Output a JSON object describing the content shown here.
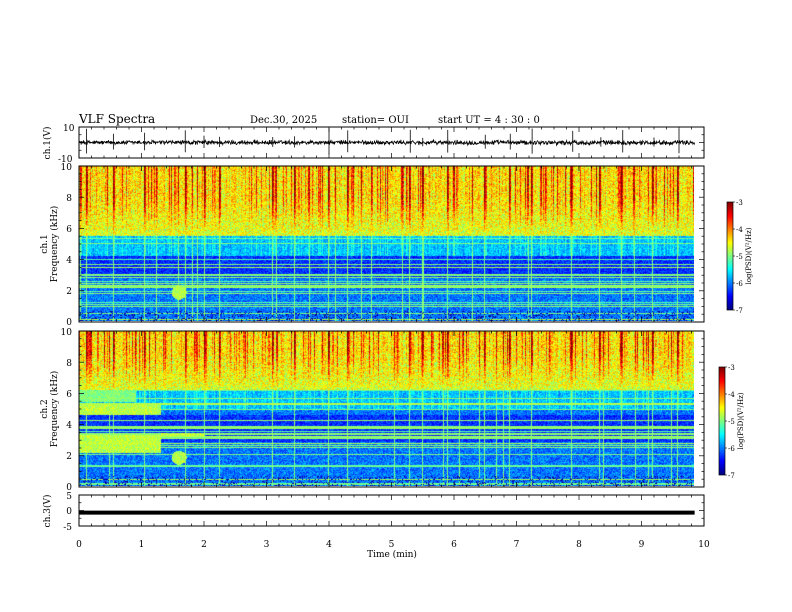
{
  "header": {
    "title": "VLF Spectra",
    "date": "Dec.30, 2025",
    "station": "station= OUI",
    "start": "start  UT =   4 : 30 : 0"
  },
  "chart_data": [
    {
      "type": "line",
      "panel": "ch1-waveform",
      "ylabel": "ch.1(V)",
      "ylim": [
        -10,
        10
      ],
      "yticks": [
        "10",
        "-10"
      ],
      "xlim": [
        0,
        10
      ],
      "trace_level": 0.0,
      "noise_amplitude": 1.2,
      "spike_times": [
        0.12,
        0.55,
        1.05,
        1.7,
        2.0,
        2.25,
        3.1,
        3.45,
        4.0,
        4.3,
        5.3,
        5.5,
        5.9,
        6.5,
        6.9,
        7.25,
        7.9,
        8.35,
        8.7,
        9.2,
        9.6
      ]
    },
    {
      "type": "heatmap",
      "panel": "ch1-spectrogram",
      "ylabel": "ch.1",
      "ylabel2": "Frequency (kHz)",
      "ylim": [
        0,
        10
      ],
      "yticks": [
        "0",
        "2",
        "4",
        "6",
        "8",
        "10"
      ],
      "xlim": [
        0,
        9.85
      ],
      "colorbar": {
        "label": "log(PSD)(V²/Hz)",
        "range": [
          -7,
          -3
        ],
        "ticks": [
          "-7",
          "-6",
          "-5",
          "-4",
          "-3"
        ]
      },
      "sferic_band_lower_kHz": 5.5,
      "whistler_patch": {
        "time": 1.6,
        "freq": 1.8
      },
      "spike_times": [
        0.12,
        0.55,
        1.05,
        1.7,
        2.0,
        2.25,
        3.1,
        3.45,
        4.0,
        4.3,
        5.3,
        5.5,
        5.9,
        6.5,
        6.9,
        7.25,
        7.9,
        8.35,
        8.7,
        9.2,
        9.6
      ]
    },
    {
      "type": "heatmap",
      "panel": "ch2-spectrogram",
      "ylabel": "ch.2",
      "ylabel2": "Frequency (kHz)",
      "ylim": [
        0,
        10
      ],
      "yticks": [
        "0",
        "2",
        "4",
        "6",
        "8",
        "10"
      ],
      "xlim": [
        0,
        9.85
      ],
      "colorbar": {
        "label": "log(PSD)(V²/Hz)",
        "range": [
          -7,
          -3
        ],
        "ticks": [
          "-7",
          "-6",
          "-5",
          "-4",
          "-3"
        ]
      },
      "sferic_band_lower_kHz": 6.2,
      "interference_blocks": [
        {
          "t0": 0.0,
          "t1": 1.3,
          "f0": 4.6,
          "f1": 5.2
        },
        {
          "t0": 0.0,
          "t1": 1.3,
          "f0": 2.1,
          "f1": 3.3
        },
        {
          "t0": 1.3,
          "t1": 2.0,
          "f0": 3.2,
          "f1": 3.4
        }
      ],
      "spike_times": [
        0.12,
        0.55,
        1.05,
        1.7,
        2.0,
        2.25,
        3.1,
        3.45,
        4.0,
        4.3,
        5.3,
        5.5,
        5.9,
        6.5,
        6.9,
        7.25,
        7.9,
        8.35,
        8.7,
        9.2,
        9.6
      ]
    },
    {
      "type": "line",
      "panel": "ch3-waveform",
      "ylabel": "ch.3(V)",
      "ylim": [
        -5,
        5
      ],
      "yticks": [
        "5",
        "0",
        "-5"
      ],
      "xlim": [
        0,
        10
      ],
      "trace_level": -0.7,
      "xlabel": "Time (min)",
      "xticks": [
        "0",
        "1",
        "2",
        "3",
        "4",
        "5",
        "6",
        "7",
        "8",
        "9",
        "10"
      ]
    }
  ]
}
